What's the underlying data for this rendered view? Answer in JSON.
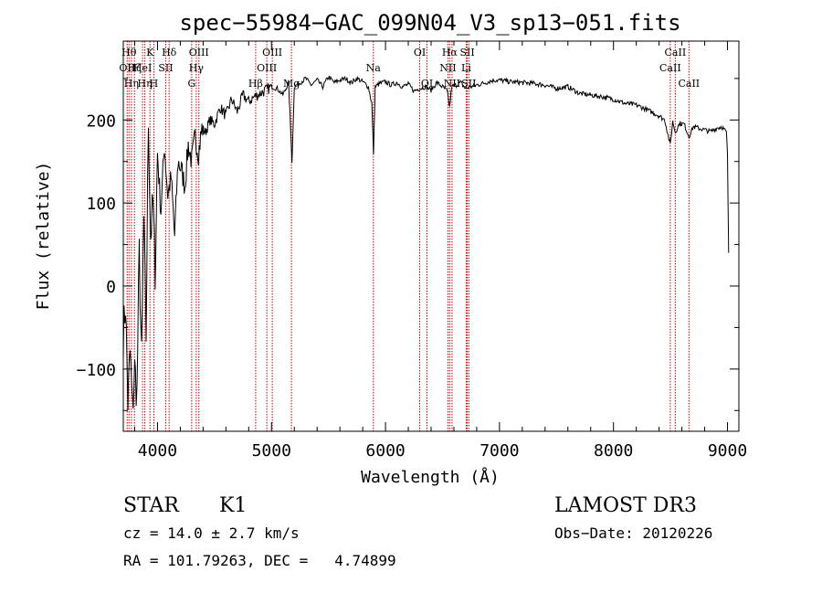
{
  "chart_data": {
    "type": "line",
    "title": "spec−55984−GAC_099N04_V3_sp13−051.fits",
    "xlabel": "Wavelength (Å)",
    "ylabel": "Flux (relative)",
    "xlim": [
      3700,
      9100
    ],
    "ylim": [
      -175,
      295
    ],
    "x_ticks": [
      {
        "value": 4000,
        "label": "4000"
      },
      {
        "value": 5000,
        "label": "5000"
      },
      {
        "value": 6000,
        "label": "6000"
      },
      {
        "value": 7000,
        "label": "7000"
      },
      {
        "value": 8000,
        "label": "8000"
      },
      {
        "value": 9000,
        "label": "9000"
      }
    ],
    "y_ticks": [
      {
        "value": -100,
        "label": "−100"
      },
      {
        "value": 0,
        "label": "0"
      },
      {
        "value": 100,
        "label": "100"
      },
      {
        "value": 200,
        "label": "200"
      }
    ],
    "line_color": "#000000",
    "marker_color": "#cc0000",
    "series": [
      {
        "name": "flux",
        "x": [
          3700,
          3720,
          3740,
          3760,
          3780,
          3800,
          3820,
          3840,
          3860,
          3880,
          3900,
          3920,
          3940,
          3960,
          3980,
          4000,
          4030,
          4060,
          4090,
          4120,
          4150,
          4180,
          4210,
          4240,
          4270,
          4300,
          4330,
          4360,
          4390,
          4420,
          4460,
          4500,
          4550,
          4600,
          4650,
          4700,
          4750,
          4800,
          4850,
          4900,
          4950,
          5000,
          5050,
          5100,
          5150,
          5180,
          5200,
          5250,
          5300,
          5350,
          5400,
          5450,
          5500,
          5550,
          5600,
          5650,
          5700,
          5750,
          5800,
          5850,
          5880,
          5895,
          5910,
          5950,
          6000,
          6050,
          6100,
          6150,
          6200,
          6250,
          6300,
          6350,
          6400,
          6450,
          6500,
          6540,
          6563,
          6580,
          6620,
          6660,
          6700,
          6750,
          6800,
          6850,
          6900,
          6950,
          7000,
          7100,
          7200,
          7300,
          7400,
          7500,
          7600,
          7700,
          7800,
          7900,
          8000,
          8100,
          8200,
          8300,
          8400,
          8450,
          8498,
          8520,
          8542,
          8580,
          8620,
          8662,
          8700,
          8750,
          8800,
          8850,
          8900,
          8950,
          8990,
          9000,
          9010
        ],
        "y": [
          -60,
          -20,
          -140,
          -80,
          -150,
          -100,
          -130,
          40,
          -90,
          80,
          -60,
          200,
          60,
          100,
          20,
          160,
          90,
          170,
          110,
          130,
          60,
          150,
          140,
          120,
          170,
          150,
          180,
          160,
          190,
          185,
          200,
          195,
          215,
          205,
          225,
          210,
          230,
          222,
          228,
          232,
          236,
          240,
          238,
          230,
          245,
          150,
          240,
          245,
          250,
          242,
          248,
          240,
          252,
          245,
          248,
          250,
          245,
          250,
          246,
          240,
          220,
          160,
          240,
          244,
          246,
          242,
          245,
          240,
          243,
          235,
          238,
          240,
          236,
          245,
          240,
          235,
          215,
          240,
          242,
          245,
          238,
          240,
          242,
          244,
          246,
          248,
          248,
          246,
          245,
          244,
          242,
          238,
          240,
          232,
          230,
          228,
          225,
          220,
          218,
          212,
          205,
          200,
          170,
          198,
          185,
          196,
          195,
          180,
          192,
          190,
          188,
          186,
          190,
          192,
          185,
          160,
          40
        ],
        "note": "values estimated from plotted curve"
      }
    ],
    "line_markers": [
      {
        "x": 3734,
        "label": "OII",
        "row": 2
      },
      {
        "x": 3750,
        "label": "Hθ",
        "row": 1
      },
      {
        "x": 3771,
        "label": "Hη",
        "row": 3
      },
      {
        "x": 3798,
        "label": "Hζ",
        "row": 2
      },
      {
        "x": 3869,
        "label": "HeI",
        "row": 2
      },
      {
        "x": 3889,
        "label": "Hη",
        "row": 3
      },
      {
        "x": 3934,
        "label": "K",
        "row": 1
      },
      {
        "x": 3968,
        "label": "H",
        "row": 3
      },
      {
        "x": 4072,
        "label": "SII",
        "row": 2
      },
      {
        "x": 4102,
        "label": "Hδ",
        "row": 1
      },
      {
        "x": 4300,
        "label": "G",
        "row": 3
      },
      {
        "x": 4340,
        "label": "Hγ",
        "row": 2
      },
      {
        "x": 4363,
        "label": "OIII",
        "row": 1
      },
      {
        "x": 4861,
        "label": "Hβ",
        "row": 3
      },
      {
        "x": 4959,
        "label": "OIII",
        "row": 2
      },
      {
        "x": 5007,
        "label": "OIII",
        "row": 1
      },
      {
        "x": 5175,
        "label": "Mg",
        "row": 3
      },
      {
        "x": 5893,
        "label": "Na",
        "row": 2
      },
      {
        "x": 6300,
        "label": "OI",
        "row": 1
      },
      {
        "x": 6364,
        "label": "OI",
        "row": 3
      },
      {
        "x": 6548,
        "label": "NII",
        "row": 2
      },
      {
        "x": 6563,
        "label": "Hα",
        "row": 1
      },
      {
        "x": 6584,
        "label": "NII",
        "row": 3
      },
      {
        "x": 6708,
        "label": "Li",
        "row": 2
      },
      {
        "x": 6717,
        "label": "SII",
        "row": 1
      },
      {
        "x": 6731,
        "label": "SII",
        "row": 3
      },
      {
        "x": 8498,
        "label": "CaII",
        "row": 2
      },
      {
        "x": 8542,
        "label": "CaII",
        "row": 1
      },
      {
        "x": 8662,
        "label": "CaII",
        "row": 3
      }
    ]
  },
  "info": {
    "object_class": "STAR",
    "subclass": "K1",
    "survey": "LAMOST DR3",
    "redshift": "cz = 14.0 ± 2.7 km/s",
    "obs_date": "Obs−Date: 20120226",
    "coords": "RA = 101.79263, DEC =   4.74899"
  }
}
